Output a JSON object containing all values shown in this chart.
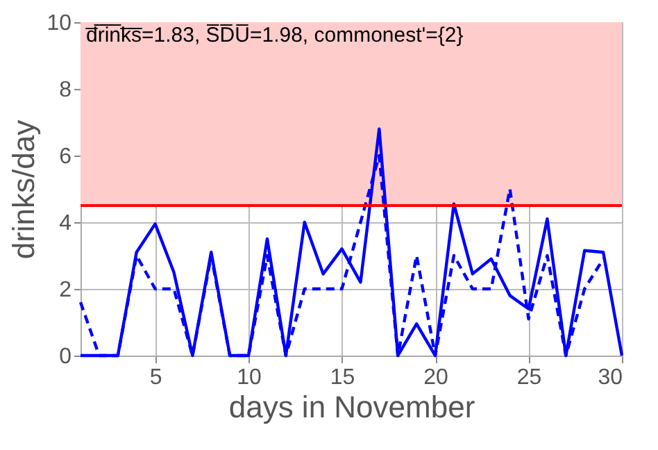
{
  "chart_data": {
    "type": "line",
    "xlabel": "days in November",
    "ylabel": "drinks/day",
    "x": [
      1,
      2,
      3,
      4,
      5,
      6,
      7,
      8,
      9,
      10,
      11,
      12,
      13,
      14,
      15,
      16,
      17,
      18,
      19,
      20,
      21,
      22,
      23,
      24,
      25,
      26,
      27,
      28,
      29,
      30
    ],
    "series": [
      {
        "color": "#0000ff",
        "line_style": "solid",
        "values": [
          0,
          0,
          0,
          3.1,
          3.95,
          2.5,
          0,
          3.1,
          0,
          0,
          3.5,
          0,
          4.0,
          2.45,
          3.2,
          2.2,
          6.8,
          0,
          0.95,
          0,
          4.55,
          2.45,
          2.9,
          1.8,
          1.4,
          4.1,
          0,
          3.15,
          3.1,
          0
        ]
      },
      {
        "color": "#0000ff",
        "line_style": "dashed",
        "values": [
          1.6,
          0,
          0,
          3.0,
          2,
          2,
          0,
          3,
          0,
          0,
          3,
          0,
          2,
          2,
          2,
          4,
          6,
          0,
          3,
          0,
          3,
          2,
          2,
          5,
          1.1,
          3,
          0,
          2,
          2.9,
          null
        ]
      }
    ],
    "xlim": [
      1,
      30
    ],
    "xticks": [
      5,
      10,
      15,
      20,
      25,
      30
    ],
    "ylim": [
      0,
      10
    ],
    "yticks": [
      0,
      2,
      4,
      6,
      8,
      10
    ],
    "grid": true,
    "ref_lines": [
      {
        "axis": "y",
        "value": 4.5,
        "color": "#ff0000"
      }
    ],
    "bands": [
      {
        "axis": "y",
        "from": 4.5,
        "to": 10,
        "color": "#ffcccc"
      }
    ],
    "annotations": [
      "d̅r̅i̅n̅k̅s̅=1.83, S̅D̅U̅=1.98, commonest'={2}"
    ]
  }
}
